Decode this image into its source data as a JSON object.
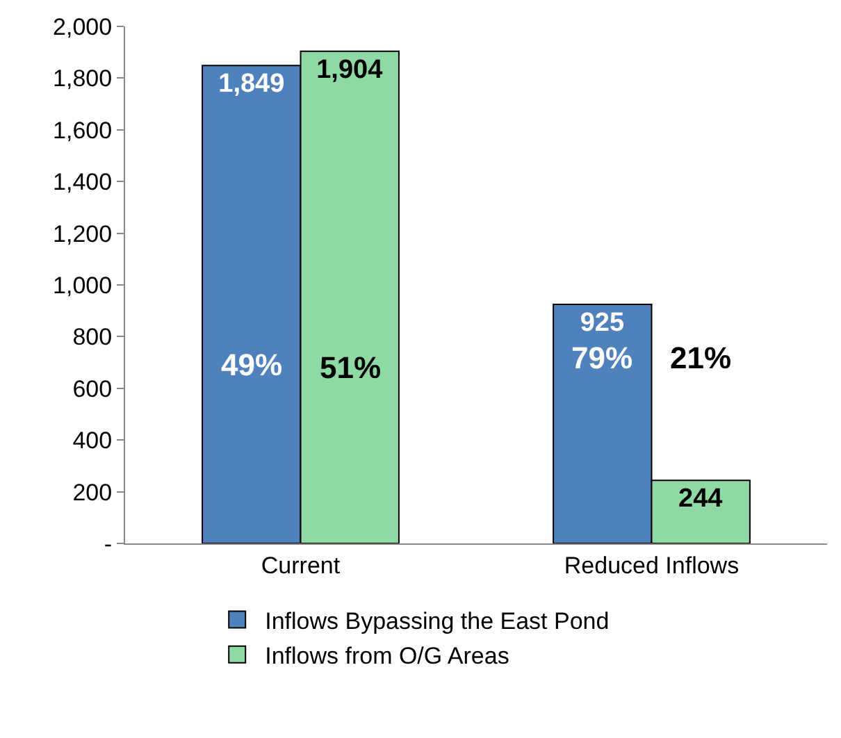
{
  "chart_data": {
    "type": "bar",
    "categories": [
      "Current",
      "Reduced Inflows"
    ],
    "series": [
      {
        "name": "Inflows Bypassing the East Pond",
        "color": "#4f81bd",
        "values": [
          1849,
          925
        ],
        "value_labels": [
          "1,849",
          "925"
        ]
      },
      {
        "name": "Inflows from O/G Areas",
        "color": "#8fd9a4",
        "values": [
          1904,
          244
        ],
        "value_labels": [
          "1,904",
          "244"
        ]
      }
    ],
    "ylim": [
      0,
      2000
    ],
    "yticks": [
      {
        "value": 0,
        "label": "-"
      },
      200,
      400,
      600,
      800,
      {
        "value": 1000,
        "label": "1,000"
      },
      {
        "value": 1200,
        "label": "1,200"
      },
      {
        "value": 1400,
        "label": "1,400"
      },
      {
        "value": 1600,
        "label": "1,600"
      },
      {
        "value": 1800,
        "label": "1,800"
      },
      {
        "value": 2000,
        "label": "2,000"
      }
    ],
    "annotations": [
      {
        "text": "49%",
        "x": "Current",
        "y": 690
      },
      {
        "text": "51%",
        "x": "Current",
        "y": 680
      },
      {
        "text": "79%",
        "x": "Reduced Inflows",
        "y": 720
      },
      {
        "text": "21%",
        "x": "Reduced Inflows",
        "y": 720
      }
    ],
    "grid": false,
    "legend": "bottom"
  }
}
